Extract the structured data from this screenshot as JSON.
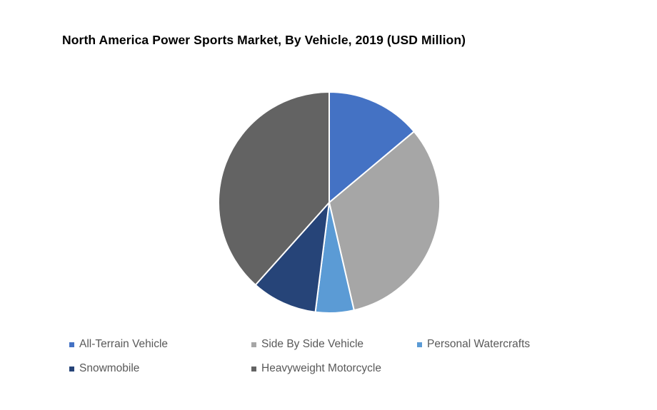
{
  "page": {
    "background_color": "#FFFFFF",
    "title_color": "#000000",
    "legend_text_color": "#595959"
  },
  "chart_data": {
    "type": "pie",
    "title": "North America Power Sports Market, By Vehicle, 2019 (USD Million)",
    "start_angle_deg": 0,
    "direction": "clockwise",
    "slice_border_color": "#FFFFFF",
    "slice_border_width": 2,
    "legend_position": "bottom",
    "slices": [
      {
        "label": "All-Terrain Vehicle",
        "value_percent": 13.9,
        "color": "#4472C4"
      },
      {
        "label": "Side By Side Vehicle",
        "value_percent": 32.5,
        "color": "#A6A6A6"
      },
      {
        "label": "Personal Watercrafts",
        "value_percent": 5.6,
        "color": "#5B9BD5"
      },
      {
        "label": "Snowmobile",
        "value_percent": 9.6,
        "color": "#264478"
      },
      {
        "label": "Heavyweight Motorcycle",
        "value_percent": 38.4,
        "color": "#636363"
      }
    ]
  }
}
